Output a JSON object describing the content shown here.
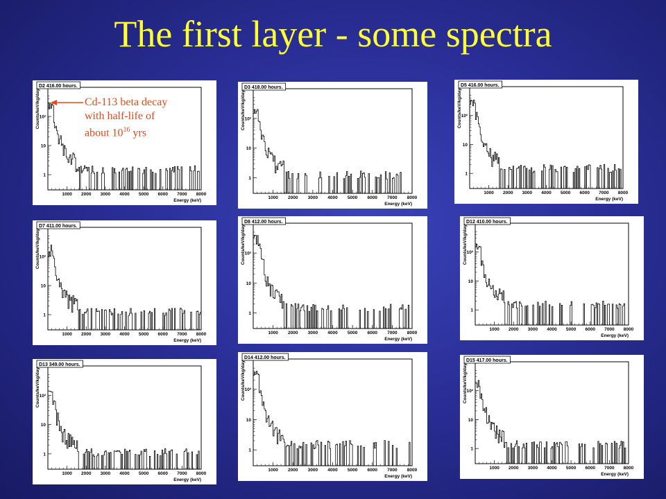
{
  "slide": {
    "title": "The first layer - some spectra",
    "title_color": "#ffff33",
    "background_color": "#2a2f98"
  },
  "annotation": {
    "line1": "Cd-113 beta decay",
    "line2": "with half-life of",
    "line3_prefix": "about 10",
    "line3_exponent": "16",
    "line3_suffix": " yrs",
    "color": "#e8471a"
  },
  "chart_data": [
    {
      "type": "histogram",
      "title": "D2 416.00 hours.",
      "xlabel": "Energy (keV)",
      "ylabel": "Counts/keV/kg/day",
      "xlim": [
        0,
        8000
      ],
      "ylim": [
        0.3,
        1000
      ],
      "y_scale": "log",
      "xticks": [
        1000,
        2000,
        3000,
        4000,
        5000,
        6000,
        7000,
        8000
      ],
      "yticks": [
        {
          "value": 1,
          "label": "1"
        },
        {
          "value": 10,
          "label": "10"
        },
        {
          "value": 100,
          "label": "10²"
        }
      ],
      "bin_width": 50,
      "peak_value": 300,
      "tail_level": 1.2,
      "seed": 2
    },
    {
      "type": "histogram",
      "title": "D3 418.00 hours.",
      "xlabel": "Energy (keV)",
      "ylabel": "Counts/keV/kg/day",
      "xlim": [
        0,
        8000
      ],
      "ylim": [
        0.3,
        1000
      ],
      "y_scale": "log",
      "xticks": [
        1000,
        2000,
        3000,
        4000,
        5000,
        6000,
        7000,
        8000
      ],
      "yticks": [
        {
          "value": 1,
          "label": "1"
        },
        {
          "value": 10,
          "label": "10"
        },
        {
          "value": 100,
          "label": "10²"
        }
      ],
      "bin_width": 50,
      "peak_value": 200,
      "tail_level": 1.0,
      "seed": 3
    },
    {
      "type": "histogram",
      "title": "D5 416.00 hours.",
      "xlabel": "Energy (keV)",
      "ylabel": "Counts/keV/kg/day",
      "xlim": [
        0,
        8000
      ],
      "ylim": [
        0.3,
        1000
      ],
      "y_scale": "log",
      "xticks": [
        1000,
        2000,
        3000,
        4000,
        5000,
        6000,
        7000,
        8000
      ],
      "yticks": [
        {
          "value": 1,
          "label": "1"
        },
        {
          "value": 10,
          "label": "10"
        },
        {
          "value": 100,
          "label": "10²"
        }
      ],
      "bin_width": 50,
      "peak_value": 350,
      "tail_level": 1.2,
      "seed": 5
    },
    {
      "type": "histogram",
      "title": "D7 411.00 hours.",
      "xlabel": "Energy (keV)",
      "ylabel": "Counts/keV/kg/day",
      "xlim": [
        0,
        8000
      ],
      "ylim": [
        0.3,
        1000
      ],
      "y_scale": "log",
      "xticks": [
        1000,
        2000,
        3000,
        4000,
        5000,
        6000,
        7000,
        8000
      ],
      "yticks": [
        {
          "value": 1,
          "label": "1"
        },
        {
          "value": 10,
          "label": "10"
        },
        {
          "value": 100,
          "label": "10²"
        }
      ],
      "bin_width": 50,
      "peak_value": 150,
      "tail_level": 1.0,
      "seed": 7
    },
    {
      "type": "histogram",
      "title": "D8 412.00 hours.",
      "xlabel": "Energy (keV)",
      "ylabel": "Counts/keV/kg/day",
      "xlim": [
        0,
        8000
      ],
      "ylim": [
        0.3,
        1000
      ],
      "y_scale": "log",
      "xticks": [
        1000,
        2000,
        3000,
        4000,
        5000,
        6000,
        7000,
        8000
      ],
      "yticks": [
        {
          "value": 1,
          "label": "1"
        },
        {
          "value": 10,
          "label": "10"
        },
        {
          "value": 100,
          "label": "10²"
        }
      ],
      "bin_width": 50,
      "peak_value": 400,
      "tail_level": 1.2,
      "seed": 8
    },
    {
      "type": "histogram",
      "title": "D12 410.00 hours.",
      "xlabel": "Energy (keV)",
      "ylabel": "Counts/keV/kg/day",
      "xlim": [
        0,
        8000
      ],
      "ylim": [
        0.3,
        1000
      ],
      "y_scale": "log",
      "xticks": [
        1000,
        2000,
        3000,
        4000,
        5000,
        6000,
        7000,
        8000
      ],
      "yticks": [
        {
          "value": 1,
          "label": "1"
        },
        {
          "value": 10,
          "label": "10"
        },
        {
          "value": 100,
          "label": "10²"
        }
      ],
      "bin_width": 50,
      "peak_value": 200,
      "tail_level": 1.2,
      "seed": 12
    },
    {
      "type": "histogram",
      "title": "D13 349.00 hours.",
      "xlabel": "Energy (keV)",
      "ylabel": "Counts/keV/kg/day",
      "xlim": [
        0,
        8000
      ],
      "ylim": [
        0.3,
        1000
      ],
      "y_scale": "log",
      "xticks": [
        1000,
        2000,
        3000,
        4000,
        5000,
        6000,
        7000,
        8000
      ],
      "yticks": [
        {
          "value": 1,
          "label": "1"
        },
        {
          "value": 10,
          "label": "10"
        },
        {
          "value": 100,
          "label": "10²"
        }
      ],
      "bin_width": 50,
      "peak_value": 150,
      "tail_level": 0.9,
      "seed": 13
    },
    {
      "type": "histogram",
      "title": "D14 412.00 hours.",
      "xlabel": "Energy (keV)",
      "ylabel": "Counts/keV/kg/day",
      "xlim": [
        0,
        8000
      ],
      "ylim": [
        0.3,
        1000
      ],
      "y_scale": "log",
      "xticks": [
        1000,
        2000,
        3000,
        4000,
        5000,
        6000,
        7000,
        8000
      ],
      "yticks": [
        {
          "value": 1,
          "label": "1"
        },
        {
          "value": 10,
          "label": "10"
        },
        {
          "value": 100,
          "label": "10²"
        }
      ],
      "bin_width": 50,
      "peak_value": 400,
      "tail_level": 1.2,
      "seed": 14
    },
    {
      "type": "histogram",
      "title": "D15 417.00 hours.",
      "xlabel": "Energy (keV)",
      "ylabel": "Counts/keV/kg/day",
      "xlim": [
        0,
        8000
      ],
      "ylim": [
        0.3,
        1000
      ],
      "y_scale": "log",
      "xticks": [
        1000,
        2000,
        3000,
        4000,
        5000,
        6000,
        7000,
        8000
      ],
      "yticks": [
        {
          "value": 1,
          "label": "1"
        },
        {
          "value": 10,
          "label": "10"
        },
        {
          "value": 100,
          "label": "10²"
        }
      ],
      "bin_width": 50,
      "peak_value": 200,
      "tail_level": 1.1,
      "seed": 15
    }
  ]
}
